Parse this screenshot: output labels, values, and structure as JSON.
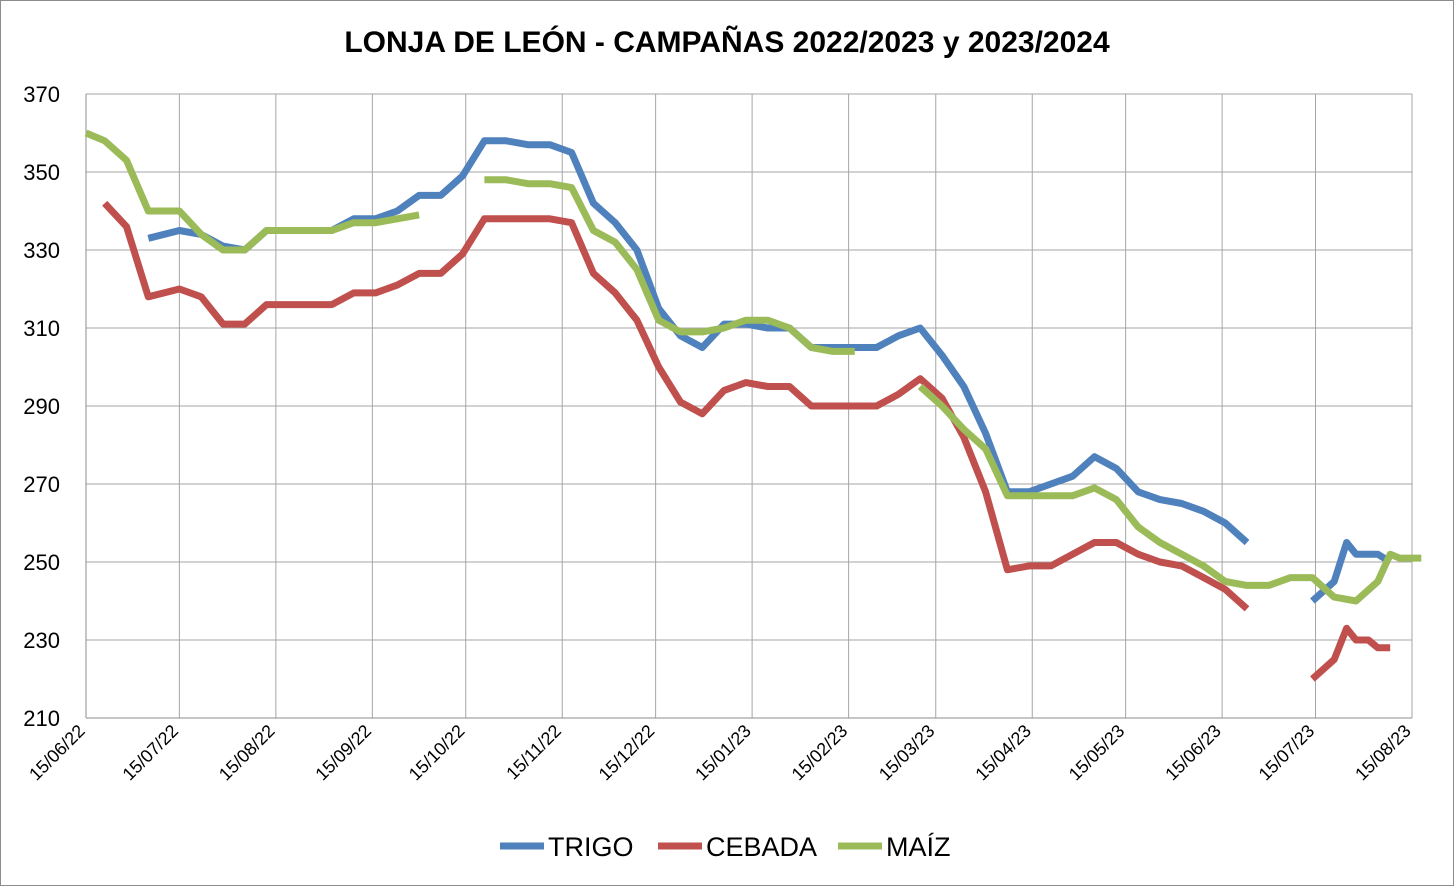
{
  "chart_data": {
    "type": "line",
    "title": "LONJA DE LEÓN - CAMPAÑAS 2022/2023 y 2023/2024",
    "xlabel": "",
    "ylabel": "",
    "ylim": [
      210,
      370
    ],
    "yticks": [
      "210",
      "230",
      "250",
      "270",
      "290",
      "310",
      "330",
      "350",
      "370"
    ],
    "xlim": [
      "2022-06-15",
      "2023-08-15"
    ],
    "xticks": [
      "15/06/22",
      "15/07/22",
      "15/08/22",
      "15/09/22",
      "15/10/22",
      "15/11/22",
      "15/12/22",
      "15/01/23",
      "15/02/23",
      "15/03/23",
      "15/04/23",
      "15/05/23",
      "15/06/23",
      "15/07/23",
      "15/08/23"
    ],
    "xtick_dates": [
      "2022-06-15",
      "2022-07-15",
      "2022-08-15",
      "2022-09-15",
      "2022-10-15",
      "2022-11-15",
      "2022-12-15",
      "2023-01-15",
      "2023-02-15",
      "2023-03-15",
      "2023-04-15",
      "2023-05-15",
      "2023-06-15",
      "2023-07-15",
      "2023-08-15"
    ],
    "grid": true,
    "legend_position": "bottom",
    "series": [
      {
        "name": "TRIGO",
        "color": "#4F81BD",
        "segments": [
          [
            [
              "2022-07-05",
              333
            ],
            [
              "2022-07-15",
              335
            ],
            [
              "2022-07-22",
              334
            ],
            [
              "2022-07-29",
              331
            ],
            [
              "2022-08-05",
              330
            ],
            [
              "2022-08-12",
              335
            ],
            [
              "2022-08-19",
              335
            ],
            [
              "2022-08-26",
              335
            ],
            [
              "2022-09-02",
              335
            ],
            [
              "2022-09-09",
              338
            ],
            [
              "2022-09-16",
              338
            ],
            [
              "2022-09-23",
              340
            ],
            [
              "2022-09-30",
              344
            ],
            [
              "2022-10-07",
              344
            ],
            [
              "2022-10-14",
              349
            ],
            [
              "2022-10-21",
              358
            ],
            [
              "2022-10-28",
              358
            ],
            [
              "2022-11-04",
              357
            ],
            [
              "2022-11-11",
              357
            ],
            [
              "2022-11-18",
              355
            ],
            [
              "2022-11-25",
              342
            ],
            [
              "2022-12-02",
              337
            ],
            [
              "2022-12-09",
              330
            ],
            [
              "2022-12-16",
              315
            ],
            [
              "2022-12-23",
              308
            ],
            [
              "2022-12-30",
              305
            ],
            [
              "2023-01-06",
              311
            ],
            [
              "2023-01-13",
              311
            ],
            [
              "2023-01-20",
              310
            ],
            [
              "2023-01-27",
              310
            ],
            [
              "2023-02-03",
              305
            ],
            [
              "2023-02-10",
              305
            ],
            [
              "2023-02-17",
              305
            ],
            [
              "2023-02-24",
              305
            ],
            [
              "2023-03-03",
              308
            ],
            [
              "2023-03-10",
              310
            ],
            [
              "2023-03-17",
              303
            ],
            [
              "2023-03-24",
              295
            ],
            [
              "2023-03-31",
              283
            ],
            [
              "2023-04-07",
              268
            ],
            [
              "2023-04-14",
              268
            ],
            [
              "2023-04-21",
              270
            ],
            [
              "2023-04-28",
              272
            ],
            [
              "2023-05-05",
              277
            ],
            [
              "2023-05-12",
              274
            ],
            [
              "2023-05-19",
              268
            ],
            [
              "2023-05-26",
              266
            ],
            [
              "2023-06-02",
              265
            ],
            [
              "2023-06-09",
              263
            ],
            [
              "2023-06-16",
              260
            ],
            [
              "2023-06-23",
              255
            ]
          ],
          [
            [
              "2023-07-14",
              240
            ],
            [
              "2023-07-21",
              245
            ],
            [
              "2023-07-25",
              255
            ],
            [
              "2023-07-28",
              252
            ],
            [
              "2023-08-04",
              252
            ],
            [
              "2023-08-08",
              250
            ]
          ]
        ]
      },
      {
        "name": "CEBADA",
        "color": "#C0504D",
        "segments": [
          [
            [
              "2022-06-21",
              342
            ],
            [
              "2022-06-28",
              336
            ],
            [
              "2022-07-05",
              318
            ],
            [
              "2022-07-15",
              320
            ],
            [
              "2022-07-22",
              318
            ],
            [
              "2022-07-29",
              311
            ],
            [
              "2022-08-05",
              311
            ],
            [
              "2022-08-12",
              316
            ],
            [
              "2022-08-19",
              316
            ],
            [
              "2022-08-26",
              316
            ],
            [
              "2022-09-02",
              316
            ],
            [
              "2022-09-09",
              319
            ],
            [
              "2022-09-16",
              319
            ],
            [
              "2022-09-23",
              321
            ],
            [
              "2022-09-30",
              324
            ],
            [
              "2022-10-07",
              324
            ],
            [
              "2022-10-14",
              329
            ],
            [
              "2022-10-21",
              338
            ],
            [
              "2022-10-28",
              338
            ],
            [
              "2022-11-04",
              338
            ],
            [
              "2022-11-11",
              338
            ],
            [
              "2022-11-18",
              337
            ],
            [
              "2022-11-25",
              324
            ],
            [
              "2022-12-02",
              319
            ],
            [
              "2022-12-09",
              312
            ],
            [
              "2022-12-16",
              300
            ],
            [
              "2022-12-23",
              291
            ],
            [
              "2022-12-30",
              288
            ],
            [
              "2023-01-06",
              294
            ],
            [
              "2023-01-13",
              296
            ],
            [
              "2023-01-20",
              295
            ],
            [
              "2023-01-27",
              295
            ],
            [
              "2023-02-03",
              290
            ],
            [
              "2023-02-10",
              290
            ],
            [
              "2023-02-17",
              290
            ],
            [
              "2023-02-24",
              290
            ],
            [
              "2023-03-03",
              293
            ],
            [
              "2023-03-10",
              297
            ],
            [
              "2023-03-17",
              292
            ],
            [
              "2023-03-24",
              282
            ],
            [
              "2023-03-31",
              268
            ],
            [
              "2023-04-07",
              248
            ],
            [
              "2023-04-14",
              249
            ],
            [
              "2023-04-21",
              249
            ],
            [
              "2023-04-28",
              252
            ],
            [
              "2023-05-05",
              255
            ],
            [
              "2023-05-12",
              255
            ],
            [
              "2023-05-19",
              252
            ],
            [
              "2023-05-26",
              250
            ],
            [
              "2023-06-02",
              249
            ],
            [
              "2023-06-09",
              246
            ],
            [
              "2023-06-16",
              243
            ],
            [
              "2023-06-23",
              238
            ]
          ],
          [
            [
              "2023-07-14",
              220
            ],
            [
              "2023-07-21",
              225
            ],
            [
              "2023-07-25",
              233
            ],
            [
              "2023-07-28",
              230
            ],
            [
              "2023-08-01",
              230
            ],
            [
              "2023-08-04",
              228
            ],
            [
              "2023-08-08",
              228
            ]
          ]
        ]
      },
      {
        "name": "MAÍZ",
        "color": "#9BBB59",
        "segments": [
          [
            [
              "2022-06-15",
              360
            ],
            [
              "2022-06-21",
              358
            ],
            [
              "2022-06-28",
              353
            ],
            [
              "2022-07-05",
              340
            ],
            [
              "2022-07-15",
              340
            ],
            [
              "2022-07-22",
              334
            ],
            [
              "2022-07-29",
              330
            ],
            [
              "2022-08-05",
              330
            ],
            [
              "2022-08-12",
              335
            ],
            [
              "2022-08-19",
              335
            ],
            [
              "2022-08-26",
              335
            ],
            [
              "2022-09-02",
              335
            ],
            [
              "2022-09-09",
              337
            ],
            [
              "2022-09-16",
              337
            ],
            [
              "2022-09-23",
              338
            ],
            [
              "2022-09-30",
              339
            ]
          ],
          [
            [
              "2022-10-21",
              348
            ],
            [
              "2022-10-28",
              348
            ],
            [
              "2022-11-04",
              347
            ],
            [
              "2022-11-11",
              347
            ],
            [
              "2022-11-18",
              346
            ],
            [
              "2022-11-25",
              335
            ],
            [
              "2022-12-02",
              332
            ],
            [
              "2022-12-09",
              325
            ],
            [
              "2022-12-16",
              312
            ],
            [
              "2022-12-23",
              309
            ],
            [
              "2022-12-30",
              309
            ],
            [
              "2023-01-06",
              310
            ],
            [
              "2023-01-13",
              312
            ],
            [
              "2023-01-20",
              312
            ],
            [
              "2023-01-27",
              310
            ],
            [
              "2023-02-03",
              305
            ],
            [
              "2023-02-10",
              304
            ],
            [
              "2023-02-17",
              304
            ]
          ],
          [
            [
              "2023-03-10",
              295
            ],
            [
              "2023-03-17",
              290
            ],
            [
              "2023-03-24",
              284
            ],
            [
              "2023-03-31",
              279
            ],
            [
              "2023-04-07",
              267
            ],
            [
              "2023-04-14",
              267
            ],
            [
              "2023-04-21",
              267
            ],
            [
              "2023-04-28",
              267
            ],
            [
              "2023-05-05",
              269
            ],
            [
              "2023-05-12",
              266
            ],
            [
              "2023-05-19",
              259
            ],
            [
              "2023-05-26",
              255
            ],
            [
              "2023-06-02",
              252
            ],
            [
              "2023-06-09",
              249
            ],
            [
              "2023-06-16",
              245
            ],
            [
              "2023-06-23",
              244
            ],
            [
              "2023-06-30",
              244
            ],
            [
              "2023-07-07",
              246
            ],
            [
              "2023-07-14",
              246
            ],
            [
              "2023-07-21",
              241
            ],
            [
              "2023-07-28",
              240
            ],
            [
              "2023-08-04",
              245
            ],
            [
              "2023-08-08",
              252
            ],
            [
              "2023-08-11",
              251
            ],
            [
              "2023-08-15",
              251
            ],
            [
              "2023-08-18",
              251
            ]
          ]
        ]
      }
    ]
  }
}
